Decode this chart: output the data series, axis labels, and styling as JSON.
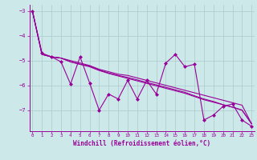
{
  "xlabel": "Windchill (Refroidissement éolien,°C)",
  "x_values": [
    0,
    1,
    2,
    3,
    4,
    5,
    6,
    7,
    8,
    9,
    10,
    11,
    12,
    13,
    14,
    15,
    16,
    17,
    18,
    19,
    20,
    21,
    22,
    23
  ],
  "line1_y": [
    -3.0,
    -4.7,
    -4.85,
    -5.05,
    -5.95,
    -4.85,
    -5.9,
    -7.0,
    -6.35,
    -6.55,
    -5.8,
    -6.55,
    -5.8,
    -6.35,
    -5.1,
    -4.75,
    -5.25,
    -5.15,
    -7.4,
    -7.2,
    -6.85,
    -6.75,
    -7.4,
    -7.65
  ],
  "line2_y": [
    -3.0,
    -4.75,
    -4.85,
    -4.9,
    -5.0,
    -5.1,
    -5.2,
    -5.35,
    -5.45,
    -5.55,
    -5.6,
    -5.7,
    -5.8,
    -5.9,
    -6.0,
    -6.1,
    -6.2,
    -6.3,
    -6.4,
    -6.5,
    -6.6,
    -6.7,
    -6.8,
    -7.55
  ],
  "line3_y": [
    -3.0,
    -4.75,
    -4.85,
    -4.9,
    -5.05,
    -5.15,
    -5.22,
    -5.38,
    -5.5,
    -5.6,
    -5.68,
    -5.78,
    -5.88,
    -5.98,
    -6.08,
    -6.18,
    -6.28,
    -6.42,
    -6.55,
    -6.65,
    -6.78,
    -6.88,
    -7.0,
    -7.55
  ],
  "line4_y": [
    -3.0,
    -4.75,
    -4.85,
    -4.9,
    -5.05,
    -5.15,
    -5.25,
    -5.4,
    -5.52,
    -5.62,
    -5.72,
    -5.82,
    -5.92,
    -6.02,
    -6.12,
    -6.22,
    -6.32,
    -6.45,
    -6.58,
    -6.68,
    -6.78,
    -6.88,
    -7.0,
    -7.55
  ],
  "line_color": "#990099",
  "bg_color": "#cce8e8",
  "grid_color": "#aacccc",
  "ylim": [
    -7.85,
    -2.75
  ],
  "xlim": [
    -0.3,
    23.3
  ],
  "yticks": [
    -3,
    -4,
    -5,
    -6,
    -7
  ],
  "xticks": [
    0,
    1,
    2,
    3,
    4,
    5,
    6,
    7,
    8,
    9,
    10,
    11,
    12,
    13,
    14,
    15,
    16,
    17,
    18,
    19,
    20,
    21,
    22,
    23
  ]
}
